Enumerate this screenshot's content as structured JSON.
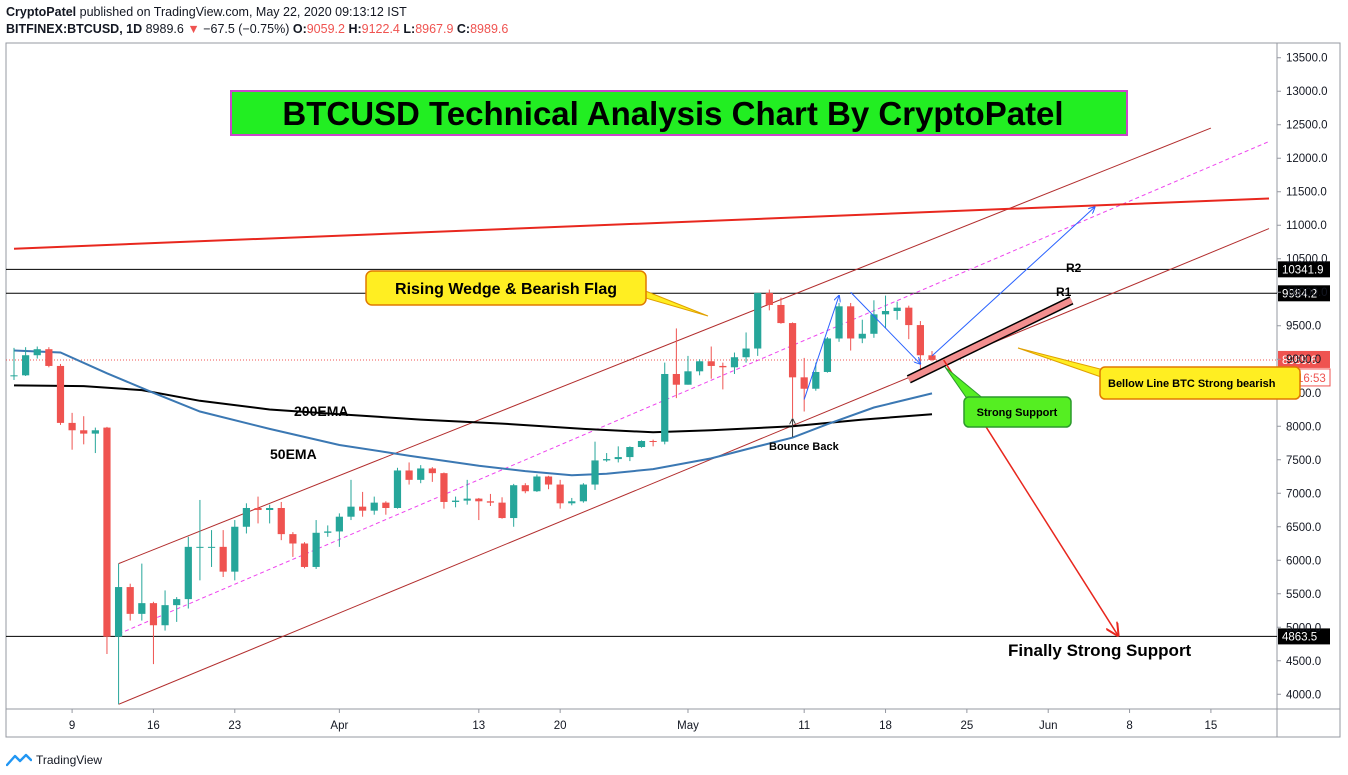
{
  "header": {
    "author": "CryptoPatel",
    "published_text": "published on TradingView.com, May 22, 2020 09:13:12 IST",
    "symbol": "BITFINEX:BTCUSD, 1D",
    "last": "8989.6",
    "change": "−67.5 (−0.75%)",
    "o_label": "O:",
    "o": "9059.2",
    "h_label": "H:",
    "h": "9122.4",
    "l_label": "L:",
    "l": "8967.9",
    "c_label": "C:",
    "c": "8989.6"
  },
  "footer": {
    "brand": "TradingView"
  },
  "colors": {
    "up": "#26a69a",
    "down": "#ef5350",
    "ema50": "#3b78b3",
    "ema200": "#000000",
    "channel": "#b22d2d",
    "mid": "#ee44ee",
    "resistance": "#e8271e"
  },
  "chart_data": {
    "type": "candlestick",
    "title": "BTCUSD Technical Analysis Chart By CryptoPatel",
    "y_ticks": [
      4000,
      4500,
      5000,
      5500,
      6000,
      6500,
      7000,
      7500,
      8000,
      8500,
      9000,
      9500,
      10000,
      10500,
      11000,
      11500,
      12000,
      12500,
      13000,
      13500
    ],
    "y_tick_labels": [
      "4000.0",
      "4500.0",
      "5000.0",
      "5500.0",
      "6000.0",
      "6500.0",
      "7000.0",
      "7500.0",
      "8000.0",
      "8500.0",
      "9000.0",
      "9500.0",
      "10000.0",
      "10500.0",
      "11000.0",
      "11500.0",
      "12000.0",
      "12500.0",
      "13000.0",
      "13500.0"
    ],
    "ylim": [
      3780,
      13720
    ],
    "x_ticks": [
      {
        "date": "2020-03-09",
        "label": "9"
      },
      {
        "date": "2020-03-16",
        "label": "16"
      },
      {
        "date": "2020-03-23",
        "label": "23"
      },
      {
        "date": "2020-04-01",
        "label": "Apr"
      },
      {
        "date": "2020-04-13",
        "label": "13"
      },
      {
        "date": "2020-04-20",
        "label": "20"
      },
      {
        "date": "2020-05-01",
        "label": "May"
      },
      {
        "date": "2020-05-11",
        "label": "11"
      },
      {
        "date": "2020-05-18",
        "label": "18"
      },
      {
        "date": "2020-05-25",
        "label": "25"
      },
      {
        "date": "2020-06-01",
        "label": "Jun"
      },
      {
        "date": "2020-06-08",
        "label": "8"
      },
      {
        "date": "2020-06-15",
        "label": "15"
      }
    ],
    "xlim": [
      "2020-03-04",
      "2020-06-20"
    ],
    "candles": [
      {
        "date": "2020-03-04",
        "o": 8760,
        "h": 9170,
        "l": 8690,
        "c": 8760
      },
      {
        "date": "2020-03-05",
        "o": 8760,
        "h": 9180,
        "l": 8750,
        "c": 9060
      },
      {
        "date": "2020-03-06",
        "o": 9060,
        "h": 9190,
        "l": 9010,
        "c": 9150
      },
      {
        "date": "2020-03-07",
        "o": 9150,
        "h": 9180,
        "l": 8880,
        "c": 8900
      },
      {
        "date": "2020-03-08",
        "o": 8900,
        "h": 8930,
        "l": 8020,
        "c": 8050
      },
      {
        "date": "2020-03-09",
        "o": 8050,
        "h": 8200,
        "l": 7650,
        "c": 7940
      },
      {
        "date": "2020-03-10",
        "o": 7940,
        "h": 8150,
        "l": 7730,
        "c": 7890
      },
      {
        "date": "2020-03-11",
        "o": 7890,
        "h": 7980,
        "l": 7600,
        "c": 7940
      },
      {
        "date": "2020-03-12",
        "o": 7980,
        "h": 7990,
        "l": 4600,
        "c": 4860
      },
      {
        "date": "2020-03-13",
        "o": 4860,
        "h": 5950,
        "l": 3850,
        "c": 5600
      },
      {
        "date": "2020-03-14",
        "o": 5600,
        "h": 5650,
        "l": 5100,
        "c": 5200
      },
      {
        "date": "2020-03-15",
        "o": 5200,
        "h": 5950,
        "l": 5100,
        "c": 5360
      },
      {
        "date": "2020-03-16",
        "o": 5360,
        "h": 5380,
        "l": 4450,
        "c": 5030
      },
      {
        "date": "2020-03-17",
        "o": 5030,
        "h": 5550,
        "l": 4950,
        "c": 5330
      },
      {
        "date": "2020-03-18",
        "o": 5330,
        "h": 5450,
        "l": 5080,
        "c": 5420
      },
      {
        "date": "2020-03-19",
        "o": 5420,
        "h": 6350,
        "l": 5280,
        "c": 6200
      },
      {
        "date": "2020-03-20",
        "o": 6200,
        "h": 6900,
        "l": 5700,
        "c": 6200
      },
      {
        "date": "2020-03-21",
        "o": 6200,
        "h": 6450,
        "l": 5900,
        "c": 6200
      },
      {
        "date": "2020-03-22",
        "o": 6200,
        "h": 6450,
        "l": 5750,
        "c": 5830
      },
      {
        "date": "2020-03-23",
        "o": 5830,
        "h": 6600,
        "l": 5700,
        "c": 6500
      },
      {
        "date": "2020-03-24",
        "o": 6500,
        "h": 6850,
        "l": 6400,
        "c": 6780
      },
      {
        "date": "2020-03-25",
        "o": 6780,
        "h": 6950,
        "l": 6550,
        "c": 6750
      },
      {
        "date": "2020-03-26",
        "o": 6750,
        "h": 6830,
        "l": 6550,
        "c": 6780
      },
      {
        "date": "2020-03-27",
        "o": 6780,
        "h": 6870,
        "l": 6300,
        "c": 6390
      },
      {
        "date": "2020-03-28",
        "o": 6390,
        "h": 6420,
        "l": 6050,
        "c": 6250
      },
      {
        "date": "2020-03-29",
        "o": 6250,
        "h": 6270,
        "l": 5880,
        "c": 5900
      },
      {
        "date": "2020-03-30",
        "o": 5900,
        "h": 6600,
        "l": 5870,
        "c": 6410
      },
      {
        "date": "2020-03-31",
        "o": 6410,
        "h": 6520,
        "l": 6350,
        "c": 6430
      },
      {
        "date": "2020-04-01",
        "o": 6430,
        "h": 6700,
        "l": 6200,
        "c": 6650
      },
      {
        "date": "2020-04-02",
        "o": 6650,
        "h": 7200,
        "l": 6600,
        "c": 6800
      },
      {
        "date": "2020-04-03",
        "o": 6800,
        "h": 7020,
        "l": 6650,
        "c": 6740
      },
      {
        "date": "2020-04-04",
        "o": 6740,
        "h": 6950,
        "l": 6680,
        "c": 6860
      },
      {
        "date": "2020-04-05",
        "o": 6860,
        "h": 6880,
        "l": 6680,
        "c": 6780
      },
      {
        "date": "2020-04-06",
        "o": 6780,
        "h": 7380,
        "l": 6770,
        "c": 7340
      },
      {
        "date": "2020-04-07",
        "o": 7340,
        "h": 7460,
        "l": 7130,
        "c": 7200
      },
      {
        "date": "2020-04-08",
        "o": 7200,
        "h": 7420,
        "l": 7150,
        "c": 7370
      },
      {
        "date": "2020-04-09",
        "o": 7370,
        "h": 7390,
        "l": 7170,
        "c": 7300
      },
      {
        "date": "2020-04-10",
        "o": 7300,
        "h": 7310,
        "l": 6770,
        "c": 6870
      },
      {
        "date": "2020-04-11",
        "o": 6870,
        "h": 6950,
        "l": 6790,
        "c": 6890
      },
      {
        "date": "2020-04-12",
        "o": 6890,
        "h": 7200,
        "l": 6830,
        "c": 6920
      },
      {
        "date": "2020-04-13",
        "o": 6920,
        "h": 6930,
        "l": 6600,
        "c": 6880
      },
      {
        "date": "2020-04-14",
        "o": 6880,
        "h": 6990,
        "l": 6810,
        "c": 6860
      },
      {
        "date": "2020-04-15",
        "o": 6860,
        "h": 6940,
        "l": 6620,
        "c": 6630
      },
      {
        "date": "2020-04-16",
        "o": 6630,
        "h": 7140,
        "l": 6500,
        "c": 7120
      },
      {
        "date": "2020-04-17",
        "o": 7120,
        "h": 7150,
        "l": 7000,
        "c": 7030
      },
      {
        "date": "2020-04-18",
        "o": 7030,
        "h": 7280,
        "l": 7020,
        "c": 7250
      },
      {
        "date": "2020-04-19",
        "o": 7250,
        "h": 7260,
        "l": 7060,
        "c": 7130
      },
      {
        "date": "2020-04-20",
        "o": 7130,
        "h": 7200,
        "l": 6770,
        "c": 6850
      },
      {
        "date": "2020-04-21",
        "o": 6850,
        "h": 6930,
        "l": 6820,
        "c": 6880
      },
      {
        "date": "2020-04-22",
        "o": 6880,
        "h": 7150,
        "l": 6860,
        "c": 7130
      },
      {
        "date": "2020-04-23",
        "o": 7130,
        "h": 7770,
        "l": 7050,
        "c": 7490
      },
      {
        "date": "2020-04-24",
        "o": 7490,
        "h": 7600,
        "l": 7470,
        "c": 7510
      },
      {
        "date": "2020-04-25",
        "o": 7510,
        "h": 7700,
        "l": 7460,
        "c": 7540
      },
      {
        "date": "2020-04-26",
        "o": 7540,
        "h": 7700,
        "l": 7480,
        "c": 7690
      },
      {
        "date": "2020-04-27",
        "o": 7690,
        "h": 7790,
        "l": 7680,
        "c": 7780
      },
      {
        "date": "2020-04-28",
        "o": 7780,
        "h": 7800,
        "l": 7700,
        "c": 7770
      },
      {
        "date": "2020-04-29",
        "o": 7770,
        "h": 8950,
        "l": 7730,
        "c": 8780
      },
      {
        "date": "2020-04-30",
        "o": 8780,
        "h": 9460,
        "l": 8420,
        "c": 8620
      },
      {
        "date": "2020-05-01",
        "o": 8620,
        "h": 9050,
        "l": 8620,
        "c": 8820
      },
      {
        "date": "2020-05-02",
        "o": 8820,
        "h": 9000,
        "l": 8760,
        "c": 8970
      },
      {
        "date": "2020-05-03",
        "o": 8970,
        "h": 9190,
        "l": 8710,
        "c": 8900
      },
      {
        "date": "2020-05-04",
        "o": 8900,
        "h": 8950,
        "l": 8550,
        "c": 8880
      },
      {
        "date": "2020-05-05",
        "o": 8880,
        "h": 9100,
        "l": 8780,
        "c": 9030
      },
      {
        "date": "2020-05-06",
        "o": 9030,
        "h": 9400,
        "l": 8950,
        "c": 9160
      },
      {
        "date": "2020-05-07",
        "o": 9160,
        "h": 9990,
        "l": 9050,
        "c": 9990
      },
      {
        "date": "2020-05-08",
        "o": 9990,
        "h": 10040,
        "l": 9730,
        "c": 9810
      },
      {
        "date": "2020-05-09",
        "o": 9810,
        "h": 9920,
        "l": 9530,
        "c": 9540
      },
      {
        "date": "2020-05-10",
        "o": 9540,
        "h": 9550,
        "l": 8120,
        "c": 8730
      },
      {
        "date": "2020-05-11",
        "o": 8730,
        "h": 9020,
        "l": 8220,
        "c": 8560
      },
      {
        "date": "2020-05-12",
        "o": 8560,
        "h": 8950,
        "l": 8530,
        "c": 8810
      },
      {
        "date": "2020-05-13",
        "o": 8810,
        "h": 9330,
        "l": 8800,
        "c": 9310
      },
      {
        "date": "2020-05-14",
        "o": 9310,
        "h": 9840,
        "l": 9260,
        "c": 9790
      },
      {
        "date": "2020-05-15",
        "o": 9790,
        "h": 9840,
        "l": 9130,
        "c": 9310
      },
      {
        "date": "2020-05-16",
        "o": 9310,
        "h": 9590,
        "l": 9240,
        "c": 9380
      },
      {
        "date": "2020-05-17",
        "o": 9380,
        "h": 9880,
        "l": 9320,
        "c": 9670
      },
      {
        "date": "2020-05-18",
        "o": 9670,
        "h": 9950,
        "l": 9460,
        "c": 9720
      },
      {
        "date": "2020-05-19",
        "o": 9720,
        "h": 9860,
        "l": 9590,
        "c": 9770
      },
      {
        "date": "2020-05-20",
        "o": 9770,
        "h": 9800,
        "l": 9300,
        "c": 9510
      },
      {
        "date": "2020-05-21",
        "o": 9510,
        "h": 9570,
        "l": 8820,
        "c": 9060
      },
      {
        "date": "2020-05-22",
        "o": 9059.2,
        "h": 9122.4,
        "l": 8967.9,
        "c": 8989.6
      }
    ],
    "ema50": [
      {
        "date": "2020-03-04",
        "v": 9130
      },
      {
        "date": "2020-03-08",
        "v": 9100
      },
      {
        "date": "2020-03-12",
        "v": 8790
      },
      {
        "date": "2020-03-16",
        "v": 8500
      },
      {
        "date": "2020-03-20",
        "v": 8220
      },
      {
        "date": "2020-03-26",
        "v": 7960
      },
      {
        "date": "2020-04-01",
        "v": 7720
      },
      {
        "date": "2020-04-07",
        "v": 7560
      },
      {
        "date": "2020-04-13",
        "v": 7410
      },
      {
        "date": "2020-04-17",
        "v": 7330
      },
      {
        "date": "2020-04-21",
        "v": 7270
      },
      {
        "date": "2020-04-24",
        "v": 7290
      },
      {
        "date": "2020-04-28",
        "v": 7360
      },
      {
        "date": "2020-05-03",
        "v": 7520
      },
      {
        "date": "2020-05-07",
        "v": 7700
      },
      {
        "date": "2020-05-10",
        "v": 7830
      },
      {
        "date": "2020-05-13",
        "v": 8030
      },
      {
        "date": "2020-05-17",
        "v": 8280
      },
      {
        "date": "2020-05-22",
        "v": 8490
      }
    ],
    "ema200": [
      {
        "date": "2020-03-04",
        "v": 8610
      },
      {
        "date": "2020-03-10",
        "v": 8600
      },
      {
        "date": "2020-03-15",
        "v": 8540
      },
      {
        "date": "2020-03-20",
        "v": 8380
      },
      {
        "date": "2020-03-26",
        "v": 8250
      },
      {
        "date": "2020-04-01",
        "v": 8180
      },
      {
        "date": "2020-04-08",
        "v": 8100
      },
      {
        "date": "2020-04-15",
        "v": 8040
      },
      {
        "date": "2020-04-22",
        "v": 7960
      },
      {
        "date": "2020-04-28",
        "v": 7910
      },
      {
        "date": "2020-05-03",
        "v": 7940
      },
      {
        "date": "2020-05-10",
        "v": 8000
      },
      {
        "date": "2020-05-16",
        "v": 8100
      },
      {
        "date": "2020-05-22",
        "v": 8180
      }
    ],
    "horizontal_levels": [
      {
        "v": 10341.9,
        "label": "10341.9",
        "level_name": "R2"
      },
      {
        "v": 9984.2,
        "label": "9984.2",
        "level_name": "R1"
      },
      {
        "v": 4863.5,
        "label": "4863.5"
      }
    ],
    "current_price": {
      "v": 8989.6,
      "label": "8989.6",
      "countdown": "20:16:53"
    },
    "trend_lines": [
      {
        "name": "upper-channel",
        "p1": {
          "date": "2020-03-13",
          "v": 5950
        },
        "p2": {
          "date": "2020-06-15",
          "v": 12450
        }
      },
      {
        "name": "lower-channel",
        "p1": {
          "date": "2020-03-13",
          "v": 3850
        },
        "p2": {
          "date": "2020-06-20",
          "v": 10950
        }
      },
      {
        "name": "mid-channel",
        "p1": {
          "date": "2020-03-13",
          "v": 4900
        },
        "p2": {
          "date": "2020-06-20",
          "v": 12250
        }
      },
      {
        "name": "long-resistance",
        "p1": {
          "date": "2020-03-04",
          "v": 10650
        },
        "p2": {
          "date": "2020-06-20",
          "v": 11400
        }
      }
    ],
    "wedge_bar": {
      "p1": {
        "date": "2020-05-20",
        "v": 8700
      },
      "p2": {
        "date": "2020-06-03",
        "v": 9880
      }
    },
    "annotations": {
      "title_text": "BTCUSD Technical Analysis Chart By CryptoPatel",
      "rising_wedge": "Rising Wedge & Bearish Flag",
      "bellow_line": "Bellow Line BTC Strong bearish",
      "strong_support": "Strong Support",
      "bounce_back": "Bounce Back",
      "finally_support": "Finally Strong Support",
      "ema50_label": "50EMA",
      "ema200_label": "200EMA",
      "r1": "R1",
      "r2": "R2"
    }
  }
}
